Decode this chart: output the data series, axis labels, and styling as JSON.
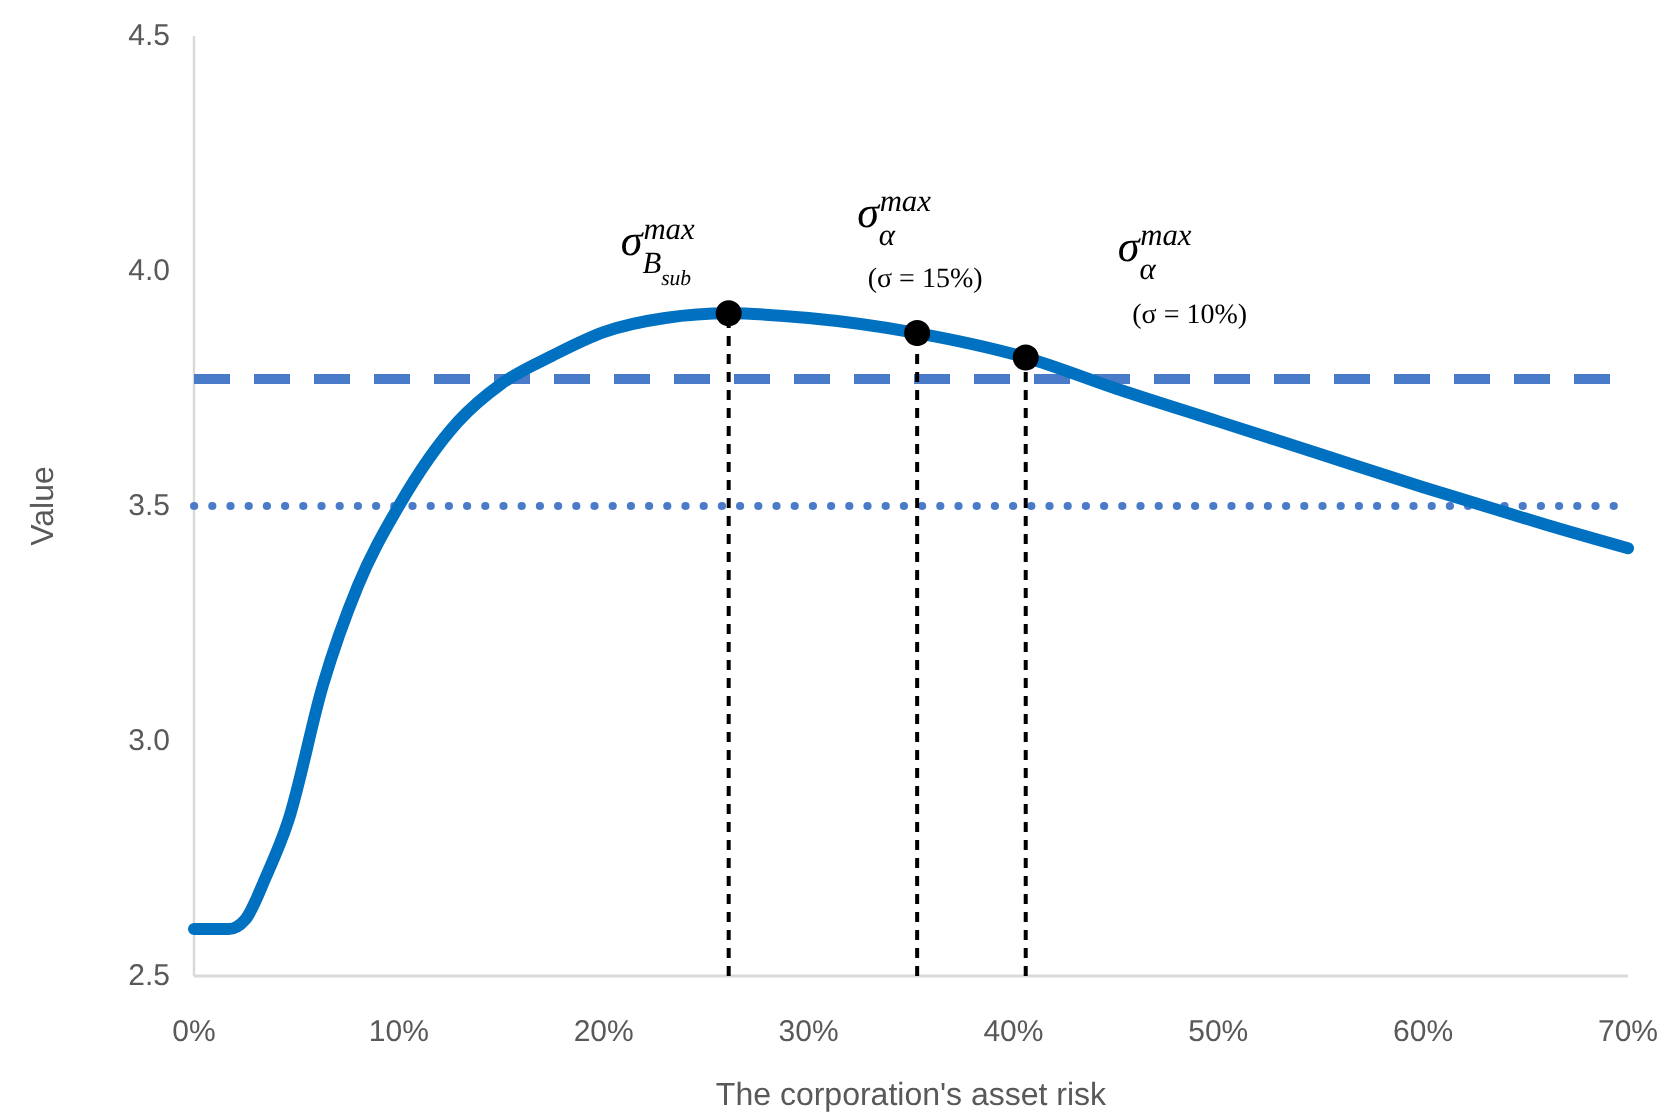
{
  "chart_data": {
    "type": "line",
    "xlabel": "The corporation's asset risk",
    "ylabel": "Value",
    "xlim": [
      0,
      70
    ],
    "ylim": [
      2.5,
      4.5
    ],
    "xticks": [
      {
        "value": 0,
        "label": "0%"
      },
      {
        "value": 10,
        "label": "10%"
      },
      {
        "value": 20,
        "label": "20%"
      },
      {
        "value": 30,
        "label": "30%"
      },
      {
        "value": 40,
        "label": "40%"
      },
      {
        "value": 50,
        "label": "50%"
      },
      {
        "value": 60,
        "label": "60%"
      },
      {
        "value": 70,
        "label": "70%"
      }
    ],
    "yticks": [
      2.5,
      {
        "value": 3,
        "label": "3.0"
      },
      3.5,
      {
        "value": 4,
        "label": "4.0"
      },
      4.5
    ],
    "grid": false,
    "series": [
      {
        "color": "#0070c0",
        "marker": "none",
        "line_style": "solid",
        "x": [
          0,
          1,
          1.7,
          2.5,
          3.5,
          4.6,
          6.3,
          8,
          10,
          12.9,
          15,
          17.5,
          20,
          23,
          26.1,
          30,
          35.3,
          40.6,
          45,
          50,
          55,
          60,
          63,
          66,
          70
        ],
        "values": [
          2.6,
          2.6,
          2.6,
          2.62,
          2.71,
          2.83,
          3.12,
          3.33,
          3.5,
          3.68,
          3.76,
          3.82,
          3.87,
          3.9,
          3.91,
          3.9,
          3.868,
          3.816,
          3.75,
          3.68,
          3.61,
          3.54,
          3.5,
          3.46,
          3.41
        ]
      },
      {
        "type": "scatter",
        "color": "#000000",
        "marker": "circle",
        "x": [
          26.1,
          35.3,
          40.6
        ],
        "values": [
          3.91,
          3.868,
          3.816
        ]
      }
    ],
    "ref_lines": [
      {
        "axis": "y",
        "value": 3.77,
        "color": "#4a7bc8",
        "line_style": "dashed"
      },
      {
        "axis": "y",
        "value": 3.5,
        "color": "#4a7bc8",
        "line_style": "dotted"
      },
      {
        "axis": "x",
        "value": 26.1,
        "color": "#000000",
        "line_style": "dashed"
      },
      {
        "axis": "x",
        "value": 35.3,
        "color": "#000000",
        "line_style": "dashed"
      },
      {
        "axis": "x",
        "value": 40.6,
        "color": "#000000",
        "line_style": "dashed"
      }
    ],
    "annotations": [
      {
        "text": "σ$_{B}$$_{sub}$$^{max}$",
        "x": 26.1,
        "y": 3.91
      },
      {
        "text": "σ$_{α}$$^{max}$",
        "x": 35.3,
        "y": 3.868
      },
      {
        "text": "(σ = 15%)",
        "x": 35.3,
        "y": 3.868
      },
      {
        "text": "σ$_{α}$$^{max}$",
        "x": 40.6,
        "y": 3.816
      },
      "(σ = 10%)"
    ]
  }
}
